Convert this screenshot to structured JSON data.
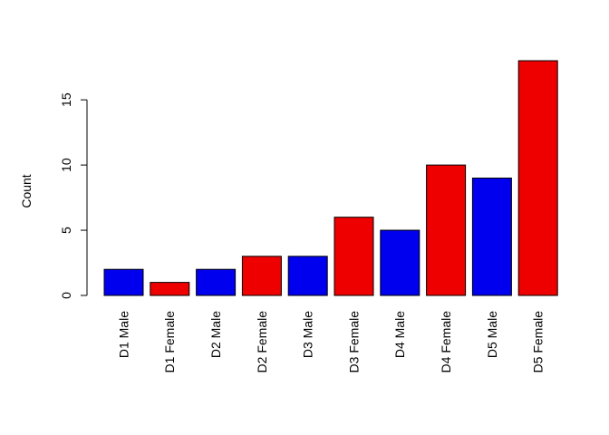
{
  "chart_data": {
    "type": "bar",
    "categories": [
      "D1 Male",
      "D1 Female",
      "D2 Male",
      "D2 Female",
      "D3 Male",
      "D3 Female",
      "D4 Male",
      "D4 Female",
      "D5 Male",
      "D5 Female"
    ],
    "values": [
      2,
      1,
      2,
      3,
      3,
      6,
      5,
      10,
      9,
      18
    ],
    "bar_colors": [
      "#0000ee",
      "#ee0000",
      "#0000ee",
      "#ee0000",
      "#0000ee",
      "#ee0000",
      "#0000ee",
      "#ee0000",
      "#0000ee",
      "#ee0000"
    ],
    "title": "",
    "xlabel": "",
    "ylabel": "Count",
    "ylim": [
      0,
      18
    ],
    "yticks": [
      0,
      5,
      10,
      15
    ],
    "ytick_labels": [
      "0",
      "5",
      "10",
      "15"
    ],
    "grid": false,
    "legend": "none"
  }
}
